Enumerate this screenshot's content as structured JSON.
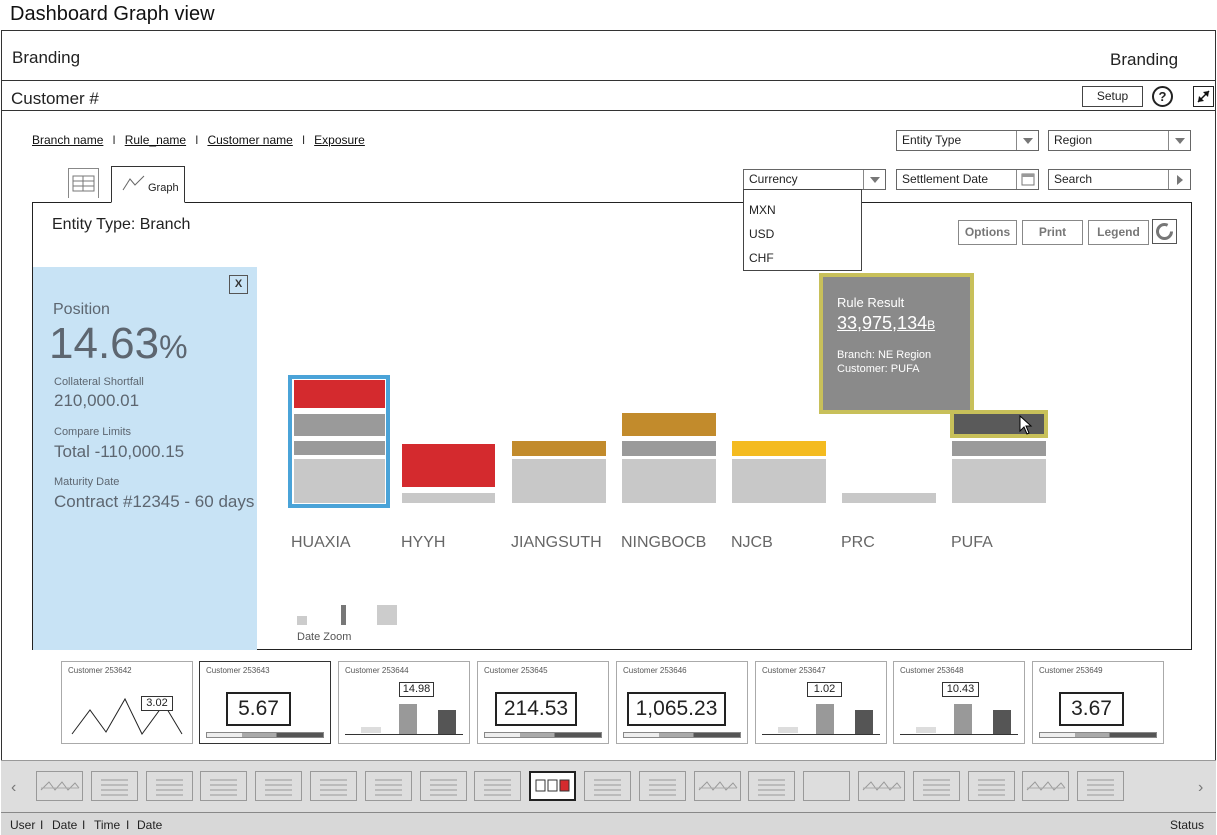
{
  "page_title": "Dashboard Graph view",
  "branding": {
    "left": "Branding",
    "right": "Branding"
  },
  "customer_bar": {
    "title": "Customer #",
    "setup_label": "Setup",
    "help_label": "?"
  },
  "filter_links": [
    "Branch name",
    "Rule_name",
    "Customer name",
    "Exposure"
  ],
  "filters": {
    "entity_type": "Entity Type",
    "region": "Region",
    "currency": "Currency",
    "settlement_date": "Settlement Date",
    "search": "Search"
  },
  "currency_options": [
    "MXN",
    "USD",
    "CHF"
  ],
  "tabs": {
    "graph_label": "Graph"
  },
  "panel": {
    "title": "Entity Type: Branch",
    "options_label": "Options",
    "print_label": "Print",
    "legend_label": "Legend"
  },
  "side_panel": {
    "close_label": "X",
    "position_label": "Position",
    "position_value": "14.63",
    "position_unit": "%",
    "collateral_label": "Collateral Shortfall",
    "collateral_value": "210,000.01",
    "compare_label": "Compare Limits",
    "compare_value": "Total -110,000.15",
    "maturity_label": "Maturity Date",
    "maturity_value": "Contract #12345 - 60 days"
  },
  "tooltip": {
    "title": "Rule Result",
    "value": "33,975,134",
    "unit": "B",
    "branch": "Branch: NE Region",
    "customer": "Customer: PUFA"
  },
  "bank_labels": [
    "HUAXIA",
    "HYYH",
    "JIANGSUTH",
    "NINGBOCB",
    "NJCB",
    "PRC",
    "PUFA"
  ],
  "date_zoom_label": "Date Zoom",
  "colors": {
    "red": "#d42a2e",
    "gold": "#c28b2c",
    "yellow": "#f4bb20",
    "gray": "#9a9a9a",
    "light_gray": "#c8c8c8",
    "dark_gray": "#5a5a5a",
    "blue_select": "#4aa3d8",
    "side_bg": "#c8e3f5"
  },
  "customers": [
    {
      "label": "Customer 253642",
      "value": "3.02",
      "kind": "line"
    },
    {
      "label": "Customer 253643",
      "value": "5.67",
      "kind": "gauge"
    },
    {
      "label": "Customer 253644",
      "value": "14.98",
      "kind": "bars"
    },
    {
      "label": "Customer 253645",
      "value": "214.53",
      "kind": "gauge"
    },
    {
      "label": "Customer 253646",
      "value": "1,065.23",
      "kind": "gauge"
    },
    {
      "label": "Customer 253647",
      "value": "1.02",
      "kind": "bars"
    },
    {
      "label": "Customer 253648",
      "value": "10.43",
      "kind": "bars"
    },
    {
      "label": "Customer 253649",
      "value": "3.67",
      "kind": "gauge"
    }
  ],
  "status_bar": {
    "user": "User",
    "date": "Date",
    "time": "Time",
    "date2": "Date",
    "status": "Status"
  }
}
